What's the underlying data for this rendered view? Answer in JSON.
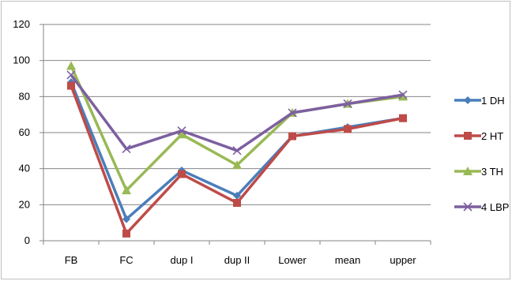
{
  "chart_data": {
    "type": "line",
    "title": "",
    "xlabel": "",
    "ylabel": "",
    "categories": [
      "FB",
      "FC",
      "dup I",
      "dup II",
      "Lower",
      "mean",
      "upper"
    ],
    "ylim": [
      0,
      120
    ],
    "yticks": [
      0,
      20,
      40,
      60,
      80,
      100,
      120
    ],
    "grid": "horizontal",
    "legend_position": "right",
    "series": [
      {
        "name": "1 DH",
        "color": "#4a7ebb",
        "marker": "diamond",
        "values": [
          88,
          12,
          39,
          25,
          58,
          63,
          68
        ]
      },
      {
        "name": "2 HT",
        "color": "#be4b48",
        "marker": "square",
        "values": [
          86,
          4,
          37,
          21,
          58,
          62,
          68
        ]
      },
      {
        "name": "3 TH",
        "color": "#98b954",
        "marker": "triangle",
        "values": [
          97,
          28,
          59,
          42,
          71,
          76,
          80
        ]
      },
      {
        "name": "4 LBP",
        "color": "#7d5fa0",
        "marker": "x",
        "values": [
          92,
          51,
          61,
          50,
          71,
          76,
          81
        ]
      }
    ]
  }
}
